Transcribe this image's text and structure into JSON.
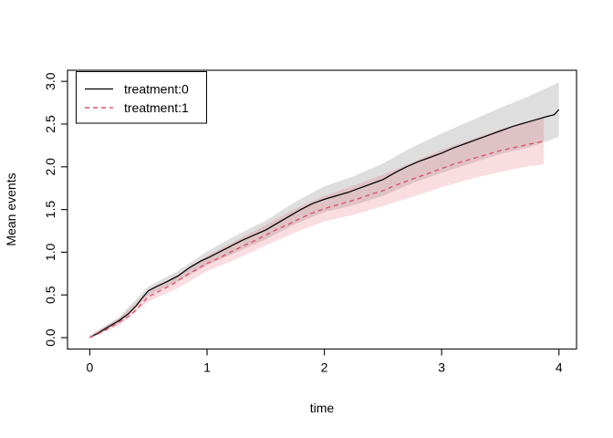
{
  "chart_data": {
    "type": "line",
    "title": "",
    "xlabel": "time",
    "ylabel": "Mean events",
    "x_ticks": [
      "0",
      "1",
      "2",
      "3",
      "4"
    ],
    "y_ticks": [
      "0.0",
      "0.5",
      "1.0",
      "1.5",
      "2.0",
      "2.5",
      "3.0"
    ],
    "xlim": [
      -0.19,
      4.15
    ],
    "ylim": [
      -0.133,
      3.13
    ],
    "grid": false,
    "legend_position": "topleft",
    "series": [
      {
        "name": "treatment:0",
        "color": "#000000",
        "linestyle": "solid",
        "points": [
          [
            0,
            0
          ],
          [
            0.08,
            0.06
          ],
          [
            0.15,
            0.12
          ],
          [
            0.25,
            0.2
          ],
          [
            0.33,
            0.28
          ],
          [
            0.4,
            0.38
          ],
          [
            0.45,
            0.47
          ],
          [
            0.5,
            0.55
          ],
          [
            0.57,
            0.6
          ],
          [
            0.65,
            0.65
          ],
          [
            0.75,
            0.72
          ],
          [
            0.85,
            0.82
          ],
          [
            0.95,
            0.9
          ],
          [
            1.0,
            0.93
          ],
          [
            1.1,
            1.0
          ],
          [
            1.2,
            1.07
          ],
          [
            1.3,
            1.14
          ],
          [
            1.4,
            1.2
          ],
          [
            1.5,
            1.26
          ],
          [
            1.6,
            1.34
          ],
          [
            1.7,
            1.42
          ],
          [
            1.8,
            1.5
          ],
          [
            1.9,
            1.57
          ],
          [
            2.0,
            1.62
          ],
          [
            2.1,
            1.66
          ],
          [
            2.2,
            1.7
          ],
          [
            2.3,
            1.75
          ],
          [
            2.4,
            1.8
          ],
          [
            2.5,
            1.85
          ],
          [
            2.6,
            1.93
          ],
          [
            2.7,
            2.0
          ],
          [
            2.8,
            2.06
          ],
          [
            2.9,
            2.11
          ],
          [
            3.0,
            2.16
          ],
          [
            3.1,
            2.22
          ],
          [
            3.2,
            2.27
          ],
          [
            3.3,
            2.32
          ],
          [
            3.4,
            2.37
          ],
          [
            3.5,
            2.42
          ],
          [
            3.6,
            2.47
          ],
          [
            3.7,
            2.51
          ],
          [
            3.8,
            2.55
          ],
          [
            3.9,
            2.59
          ],
          [
            3.96,
            2.61
          ],
          [
            4.0,
            2.67
          ]
        ]
      },
      {
        "name": "treatment:1",
        "color": "#DF536B",
        "linestyle": "dashed",
        "points": [
          [
            0,
            0
          ],
          [
            0.08,
            0.05
          ],
          [
            0.15,
            0.1
          ],
          [
            0.25,
            0.18
          ],
          [
            0.33,
            0.25
          ],
          [
            0.4,
            0.33
          ],
          [
            0.45,
            0.41
          ],
          [
            0.5,
            0.48
          ],
          [
            0.6,
            0.55
          ],
          [
            0.7,
            0.62
          ],
          [
            0.8,
            0.71
          ],
          [
            0.9,
            0.79
          ],
          [
            1.0,
            0.87
          ],
          [
            1.1,
            0.93
          ],
          [
            1.2,
            1.0
          ],
          [
            1.3,
            1.07
          ],
          [
            1.4,
            1.13
          ],
          [
            1.5,
            1.2
          ],
          [
            1.6,
            1.27
          ],
          [
            1.7,
            1.33
          ],
          [
            1.8,
            1.4
          ],
          [
            1.9,
            1.46
          ],
          [
            2.0,
            1.51
          ],
          [
            2.1,
            1.55
          ],
          [
            2.2,
            1.59
          ],
          [
            2.3,
            1.63
          ],
          [
            2.4,
            1.68
          ],
          [
            2.5,
            1.72
          ],
          [
            2.6,
            1.78
          ],
          [
            2.7,
            1.83
          ],
          [
            2.8,
            1.88
          ],
          [
            2.9,
            1.93
          ],
          [
            3.0,
            1.98
          ],
          [
            3.1,
            2.03
          ],
          [
            3.2,
            2.07
          ],
          [
            3.3,
            2.11
          ],
          [
            3.4,
            2.15
          ],
          [
            3.5,
            2.19
          ],
          [
            3.6,
            2.22
          ],
          [
            3.7,
            2.25
          ],
          [
            3.8,
            2.28
          ],
          [
            3.87,
            2.3
          ]
        ]
      }
    ],
    "bands": [
      {
        "series": "treatment:0",
        "fill": "#000000",
        "opacity": 0.13,
        "points": [
          [
            0,
            0.0,
            0.02
          ],
          [
            0.25,
            0.17,
            0.24
          ],
          [
            0.5,
            0.5,
            0.6
          ],
          [
            0.75,
            0.66,
            0.78
          ],
          [
            1.0,
            0.85,
            1.01
          ],
          [
            1.25,
            1.0,
            1.2
          ],
          [
            1.5,
            1.15,
            1.37
          ],
          [
            1.75,
            1.33,
            1.59
          ],
          [
            2.0,
            1.47,
            1.77
          ],
          [
            2.25,
            1.55,
            1.89
          ],
          [
            2.5,
            1.66,
            2.04
          ],
          [
            2.75,
            1.81,
            2.23
          ],
          [
            3.0,
            1.93,
            2.39
          ],
          [
            3.25,
            2.04,
            2.54
          ],
          [
            3.5,
            2.15,
            2.69
          ],
          [
            3.75,
            2.23,
            2.83
          ],
          [
            4.0,
            2.35,
            2.99
          ]
        ]
      },
      {
        "series": "treatment:1",
        "fill": "#DF536B",
        "opacity": 0.2,
        "points": [
          [
            0,
            0.0,
            0.03
          ],
          [
            0.25,
            0.14,
            0.23
          ],
          [
            0.5,
            0.42,
            0.54
          ],
          [
            0.75,
            0.58,
            0.74
          ],
          [
            1.0,
            0.78,
            0.96
          ],
          [
            1.25,
            0.92,
            1.14
          ],
          [
            1.5,
            1.08,
            1.32
          ],
          [
            1.75,
            1.23,
            1.51
          ],
          [
            2.0,
            1.36,
            1.66
          ],
          [
            2.25,
            1.44,
            1.78
          ],
          [
            2.5,
            1.54,
            1.91
          ],
          [
            2.75,
            1.65,
            2.05
          ],
          [
            3.0,
            1.76,
            2.2
          ],
          [
            3.25,
            1.86,
            2.32
          ],
          [
            3.5,
            1.94,
            2.44
          ],
          [
            3.75,
            2.01,
            2.53
          ],
          [
            3.87,
            2.03,
            2.57
          ]
        ]
      }
    ],
    "legend": {
      "items": [
        {
          "label": "treatment:0",
          "color": "#000000",
          "linestyle": "solid"
        },
        {
          "label": "treatment:1",
          "color": "#DF536B",
          "linestyle": "dashed"
        }
      ]
    }
  }
}
